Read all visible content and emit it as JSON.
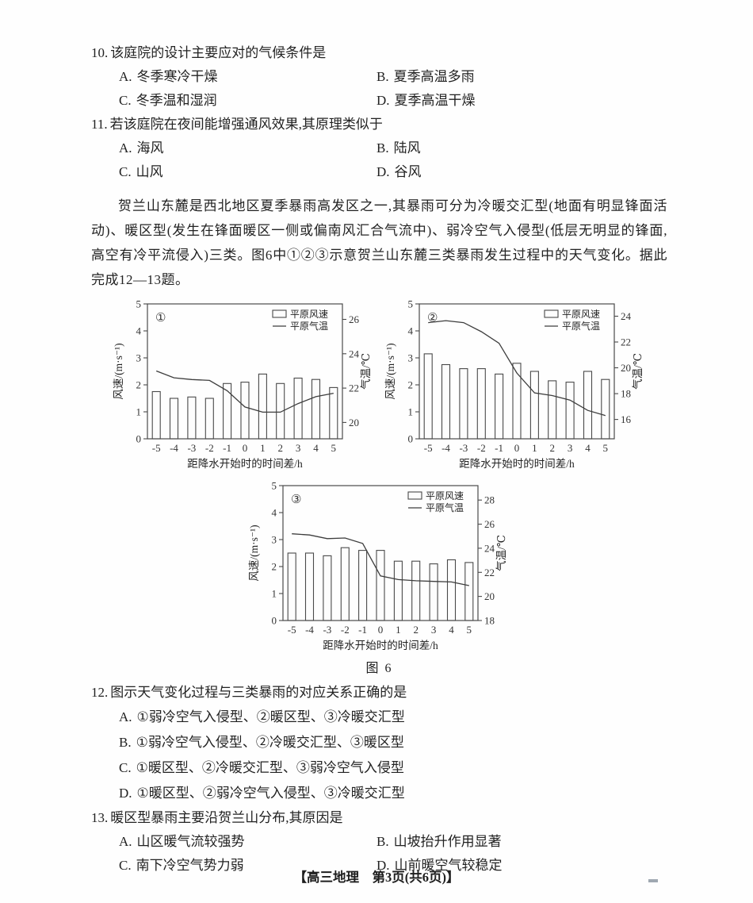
{
  "page": {
    "footer": "【高三地理　第3页(共6页)】"
  },
  "passage": "贺兰山东麓是西北地区夏季暴雨高发区之一,其暴雨可分为冷暖交汇型(地面有明显锋面活动)、暖区型(发生在锋面暖区一侧或偏南风汇合气流中)、弱冷空气入侵型(低层无明显的锋面,高空有冷平流侵入)三类。图6中①②③示意贺兰山东麓三类暴雨发生过程中的天气变化。据此完成12—13题。",
  "questions": {
    "q10": {
      "number": "10.",
      "stem": "该庭院的设计主要应对的气候条件是",
      "options": [
        {
          "label": "A.",
          "text": "冬季寒冷干燥"
        },
        {
          "label": "B.",
          "text": "夏季高温多雨"
        },
        {
          "label": "C.",
          "text": "冬季温和湿润"
        },
        {
          "label": "D.",
          "text": "夏季高温干燥"
        }
      ]
    },
    "q11": {
      "number": "11.",
      "stem": "若该庭院在夜间能增强通风效果,其原理类似于",
      "options": [
        {
          "label": "A.",
          "text": "海风"
        },
        {
          "label": "B.",
          "text": "陆风"
        },
        {
          "label": "C.",
          "text": "山风"
        },
        {
          "label": "D.",
          "text": "谷风"
        }
      ]
    },
    "q12": {
      "number": "12.",
      "stem": "图示天气变化过程与三类暴雨的对应关系正确的是",
      "options": [
        {
          "label": "A.",
          "text": "①弱冷空气入侵型、②暖区型、③冷暖交汇型"
        },
        {
          "label": "B.",
          "text": "①弱冷空气入侵型、②冷暖交汇型、③暖区型"
        },
        {
          "label": "C.",
          "text": "①暖区型、②冷暖交汇型、③弱冷空气入侵型"
        },
        {
          "label": "D.",
          "text": "①暖区型、②弱冷空气入侵型、③冷暖交汇型"
        }
      ]
    },
    "q13": {
      "number": "13.",
      "stem": "暖区型暴雨主要沿贺兰山分布,其原因是",
      "options": [
        {
          "label": "A.",
          "text": "山区暖气流较强势"
        },
        {
          "label": "B.",
          "text": "山坡抬升作用显著"
        },
        {
          "label": "C.",
          "text": "南下冷空气势力弱"
        },
        {
          "label": "D.",
          "text": "山前暖空气较稳定"
        }
      ]
    }
  },
  "figure": {
    "caption": "图 6"
  },
  "chart_data": [
    {
      "type": "bar",
      "label": "①",
      "x": [
        -5,
        -4,
        -3,
        -2,
        -1,
        0,
        1,
        2,
        3,
        4,
        5
      ],
      "xlabel": "距降水开始时的时间差/h",
      "left_axis": {
        "label": "风速/(m·s⁻¹)",
        "ticks": [
          0,
          1,
          2,
          3,
          4,
          5
        ],
        "range": [
          0,
          5
        ]
      },
      "right_axis": {
        "label": "气温/℃",
        "ticks": [
          20,
          22,
          24,
          26
        ],
        "range": [
          19.05,
          26.9
        ]
      },
      "series": [
        {
          "name": "平原风速",
          "type": "bar",
          "axis": "left",
          "values": [
            1.75,
            1.5,
            1.55,
            1.5,
            2.05,
            2.1,
            2.4,
            2.05,
            2.25,
            2.2,
            1.9
          ]
        },
        {
          "name": "平原气温",
          "type": "line",
          "axis": "right",
          "values": [
            23.0,
            22.6,
            22.5,
            22.45,
            21.85,
            20.9,
            20.6,
            20.6,
            21.1,
            21.5,
            21.7
          ]
        }
      ]
    },
    {
      "type": "bar",
      "label": "②",
      "x": [
        -5,
        -4,
        -3,
        -2,
        -1,
        0,
        1,
        2,
        3,
        4,
        5
      ],
      "xlabel": "距降水开始时的时间差/h",
      "left_axis": {
        "label": "风速/(m·s⁻¹)",
        "ticks": [
          0,
          1,
          2,
          3,
          4,
          5
        ],
        "range": [
          0,
          5
        ]
      },
      "right_axis": {
        "label": "气温/℃",
        "ticks": [
          16,
          18,
          20,
          22,
          24
        ],
        "range": [
          14.5,
          24.95
        ]
      },
      "series": [
        {
          "name": "平原风速",
          "type": "bar",
          "axis": "left",
          "values": [
            3.15,
            2.75,
            2.6,
            2.6,
            2.4,
            2.8,
            2.5,
            2.15,
            2.1,
            2.5,
            2.2
          ]
        },
        {
          "name": "平原气温",
          "type": "line",
          "axis": "right",
          "values": [
            23.5,
            23.65,
            23.5,
            22.8,
            21.9,
            19.6,
            18.05,
            17.85,
            17.5,
            16.7,
            16.3
          ]
        }
      ]
    },
    {
      "type": "bar",
      "label": "③",
      "x": [
        -5,
        -4,
        -3,
        -2,
        -1,
        0,
        1,
        2,
        3,
        4,
        5
      ],
      "xlabel": "距降水开始时的时间差/h",
      "left_axis": {
        "label": "风速/(m·s⁻¹)",
        "ticks": [
          0,
          1,
          2,
          3,
          4,
          5
        ],
        "range": [
          0,
          5
        ]
      },
      "right_axis": {
        "label": "气温/℃",
        "ticks": [
          18,
          20,
          22,
          24,
          26,
          28
        ],
        "range": [
          18,
          29.2
        ]
      },
      "series": [
        {
          "name": "平原风速",
          "type": "bar",
          "axis": "left",
          "values": [
            2.5,
            2.5,
            2.4,
            2.7,
            2.6,
            2.6,
            2.2,
            2.2,
            2.1,
            2.25,
            2.15
          ]
        },
        {
          "name": "平原气温",
          "type": "line",
          "axis": "right",
          "values": [
            25.2,
            25.1,
            24.8,
            24.85,
            24.4,
            21.7,
            21.4,
            21.3,
            21.25,
            21.2,
            20.9
          ]
        }
      ]
    }
  ]
}
